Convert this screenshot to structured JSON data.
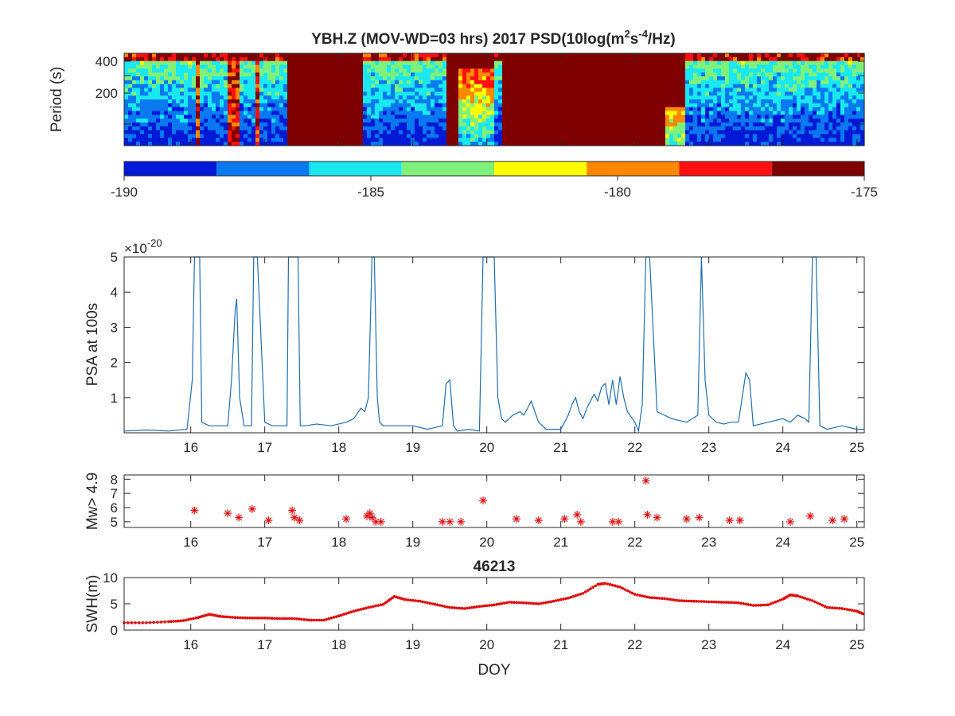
{
  "panels": {
    "spectrogram": {
      "title_main": "YBH.Z (MOV-WD=03 hrs) 2017 PSD(10log(m",
      "title_sup1": "2",
      "title_mid": "s",
      "title_sup2": "-4",
      "title_end": "/Hz)",
      "ylabel": "Period (s)",
      "yticks": [
        "400",
        "200"
      ],
      "colorbar_ticks": [
        "-190",
        "-185",
        "-180",
        "-175"
      ],
      "colorbar_colors": [
        "#0019d6",
        "#0a78ee",
        "#19e8f0",
        "#7ff07a",
        "#ffff00",
        "#ff8800",
        "#ff1010",
        "#7f0000"
      ]
    },
    "psa": {
      "ylabel": "PSA at 100s",
      "exponent_prefix": "×10",
      "exponent": "-20"
    },
    "mw": {
      "ylabel": "Mw> 4.9"
    },
    "swh": {
      "title": "46213",
      "ylabel": "SWH(m)",
      "xlabel": "DOY"
    }
  },
  "colors": {
    "psa_line": "#1f6fae",
    "marker_red": "#e01010",
    "axis": "#262626"
  },
  "chart_data": [
    {
      "type": "heatmap",
      "title": "YBH.Z (MOV-WD=03 hrs) 2017 PSD(10log(m^2s^-4/Hz)",
      "ylabel": "Period (s)",
      "xlim": [
        15.1,
        25.1
      ],
      "ylim": [
        30,
        470
      ],
      "yticks": [
        400,
        200
      ],
      "colorbar_range": [
        -190,
        -175
      ],
      "colorbar_ticks": [
        -190,
        -185,
        -180,
        -175
      ],
      "colormap": "jet, 8 levels",
      "saturated_intervals_doy": [
        [
          17.3,
          18.3
        ],
        [
          19.45,
          20.1
        ],
        [
          20.2,
          22.4
        ],
        [
          22.4,
          22.7
        ]
      ],
      "period_intervals_doy": [
        15.1,
        17.3,
        17.4,
        19.45,
        19.6,
        20.1,
        20.3,
        21.5,
        22.4,
        22.7,
        25.1
      ]
    },
    {
      "type": "line",
      "ylabel": "PSA at 100s",
      "y_scale_exponent": -20,
      "xlim": [
        15.1,
        25.1
      ],
      "ylim": [
        0,
        5
      ],
      "xticks": [
        16,
        17,
        18,
        19,
        20,
        21,
        22,
        23,
        24,
        25
      ],
      "yticks": [
        1,
        2,
        3,
        4,
        5
      ],
      "x": [
        15.1,
        15.4,
        15.7,
        15.95,
        16.02,
        16.05,
        16.08,
        16.12,
        16.15,
        16.25,
        16.4,
        16.5,
        16.55,
        16.6,
        16.62,
        16.66,
        16.72,
        16.82,
        16.85,
        16.9,
        17.0,
        17.1,
        17.2,
        17.3,
        17.32,
        17.35,
        17.4,
        17.45,
        17.48,
        17.5,
        17.55,
        17.7,
        17.9,
        18.1,
        18.2,
        18.3,
        18.35,
        18.4,
        18.45,
        18.48,
        18.52,
        18.55,
        18.6,
        18.8,
        19.0,
        19.2,
        19.4,
        19.45,
        19.5,
        19.55,
        19.6,
        19.75,
        19.9,
        19.95,
        20.0,
        20.1,
        20.15,
        20.2,
        20.25,
        20.35,
        20.45,
        20.5,
        20.55,
        20.6,
        20.65,
        20.7,
        20.8,
        21.0,
        21.05,
        21.1,
        21.15,
        21.2,
        21.25,
        21.3,
        21.35,
        21.4,
        21.45,
        21.5,
        21.55,
        21.6,
        21.65,
        21.7,
        21.75,
        21.8,
        21.85,
        21.9,
        22.0,
        22.05,
        22.1,
        22.15,
        22.2,
        22.3,
        22.5,
        22.7,
        22.85,
        22.9,
        22.95,
        23.0,
        23.1,
        23.2,
        23.3,
        23.4,
        23.45,
        23.5,
        23.55,
        23.6,
        23.8,
        24.0,
        24.1,
        24.2,
        24.3,
        24.35,
        24.4,
        24.45,
        24.5,
        24.6,
        24.8,
        25.0,
        25.1
      ],
      "y": [
        0.05,
        0.08,
        0.05,
        0.1,
        1.5,
        5.0,
        5.0,
        5.0,
        0.3,
        0.2,
        0.2,
        0.2,
        1.5,
        3.5,
        3.8,
        1.0,
        0.2,
        0.2,
        5.0,
        5.0,
        0.3,
        0.2,
        0.2,
        0.2,
        5.0,
        5.0,
        5.0,
        5.0,
        0.2,
        0.2,
        0.2,
        0.25,
        0.2,
        0.3,
        0.4,
        0.7,
        0.6,
        1.0,
        5.0,
        5.0,
        1.0,
        0.3,
        0.2,
        0.2,
        0.2,
        0.1,
        0.2,
        1.4,
        1.5,
        0.2,
        0.05,
        0.1,
        0.05,
        5.0,
        5.0,
        5.0,
        1.0,
        0.4,
        0.3,
        0.5,
        0.6,
        0.5,
        0.7,
        0.9,
        0.6,
        0.3,
        0.1,
        0.1,
        0.3,
        0.5,
        0.8,
        1.0,
        0.6,
        0.4,
        0.7,
        0.9,
        1.1,
        0.9,
        1.3,
        1.4,
        0.8,
        1.5,
        0.8,
        1.6,
        1.0,
        0.6,
        0.3,
        0.05,
        0.8,
        5.0,
        5.0,
        0.6,
        0.4,
        0.3,
        0.5,
        5.0,
        1.5,
        0.5,
        0.3,
        0.25,
        0.3,
        0.3,
        1.0,
        1.7,
        1.5,
        0.2,
        0.3,
        0.4,
        0.3,
        0.5,
        0.4,
        0.3,
        5.0,
        5.0,
        0.2,
        0.1,
        0.2,
        0.1,
        0.1
      ]
    },
    {
      "type": "scatter",
      "ylabel": "Mw> 4.9",
      "xlim": [
        15.1,
        25.1
      ],
      "ylim": [
        4.6,
        8.3
      ],
      "xticks": [
        16,
        17,
        18,
        19,
        20,
        21,
        22,
        23,
        24,
        25
      ],
      "yticks": [
        5,
        6,
        7,
        8
      ],
      "marker": "*",
      "x": [
        16.05,
        16.5,
        16.65,
        16.83,
        17.05,
        17.37,
        17.4,
        17.47,
        18.1,
        18.38,
        18.42,
        18.45,
        18.5,
        18.57,
        19.4,
        19.5,
        19.65,
        19.95,
        20.4,
        20.7,
        21.05,
        21.22,
        21.27,
        21.7,
        21.78,
        22.15,
        22.17,
        22.3,
        22.7,
        22.87,
        23.28,
        23.42,
        24.1,
        24.37,
        24.67,
        24.83
      ],
      "y": [
        5.8,
        5.6,
        5.3,
        5.9,
        5.1,
        5.8,
        5.3,
        5.1,
        5.2,
        5.4,
        5.6,
        5.3,
        5.0,
        5.0,
        5.0,
        5.0,
        5.0,
        6.5,
        5.2,
        5.1,
        5.2,
        5.5,
        5.0,
        5.0,
        5.0,
        7.9,
        5.5,
        5.3,
        5.2,
        5.3,
        5.1,
        5.1,
        5.0,
        5.4,
        5.1,
        5.2
      ]
    },
    {
      "type": "line",
      "title": "46213",
      "xlabel": "DOY",
      "ylabel": "SWH(m)",
      "xlim": [
        15.1,
        25.1
      ],
      "ylim": [
        0,
        10
      ],
      "xticks": [
        16,
        17,
        18,
        19,
        20,
        21,
        22,
        23,
        24,
        25
      ],
      "yticks": [
        0,
        5,
        10
      ],
      "marker": ".",
      "x": [
        15.1,
        15.4,
        15.7,
        15.9,
        16.1,
        16.25,
        16.4,
        16.6,
        16.8,
        17.0,
        17.2,
        17.4,
        17.6,
        17.8,
        18.0,
        18.2,
        18.4,
        18.6,
        18.75,
        18.9,
        19.1,
        19.3,
        19.5,
        19.7,
        19.9,
        20.1,
        20.3,
        20.5,
        20.7,
        20.9,
        21.1,
        21.3,
        21.5,
        21.6,
        21.8,
        22.0,
        22.2,
        22.4,
        22.6,
        22.8,
        23.0,
        23.2,
        23.4,
        23.6,
        23.8,
        24.0,
        24.1,
        24.2,
        24.4,
        24.6,
        24.8,
        25.0,
        25.1
      ],
      "y": [
        1.4,
        1.4,
        1.6,
        1.8,
        2.4,
        3.0,
        2.6,
        2.4,
        2.3,
        2.3,
        2.2,
        2.2,
        1.9,
        1.9,
        2.7,
        3.6,
        4.3,
        4.9,
        6.4,
        5.8,
        5.5,
        4.9,
        4.3,
        4.1,
        4.5,
        4.8,
        5.3,
        5.2,
        5.0,
        5.5,
        6.1,
        7.0,
        8.7,
        8.9,
        8.2,
        6.8,
        6.2,
        6.0,
        5.6,
        5.5,
        5.4,
        5.3,
        5.2,
        4.7,
        4.8,
        5.9,
        6.7,
        6.5,
        5.6,
        4.3,
        4.1,
        3.6,
        3.0
      ]
    }
  ]
}
